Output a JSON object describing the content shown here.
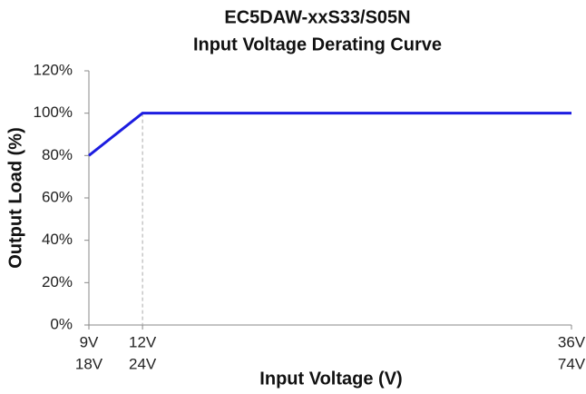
{
  "chart_data": {
    "type": "line",
    "title": [
      "EC5DAW-xxS33/S05N",
      "Input Voltage Derating Curve"
    ],
    "xlabel": "Input Voltage (V)",
    "ylabel": "Output Load (%)",
    "series": [
      {
        "name": "Output Load",
        "color": "#1c1ce0",
        "x": [
          9,
          12,
          36
        ],
        "values": [
          80,
          100,
          100
        ]
      }
    ],
    "xlim": [
      9,
      36
    ],
    "xticks": [
      {
        "value": 9,
        "label": "9V"
      },
      {
        "value": 12,
        "label": "12V"
      },
      {
        "value": 36,
        "label": "36V"
      }
    ],
    "x2ticks": [
      {
        "value": 9,
        "label": "18V"
      },
      {
        "value": 12,
        "label": "24V"
      },
      {
        "value": 36,
        "label": "74V"
      }
    ],
    "ylim": [
      0,
      120
    ],
    "yticks": [
      {
        "value": 0,
        "label": "0%"
      },
      {
        "value": 20,
        "label": "20%"
      },
      {
        "value": 40,
        "label": "40%"
      },
      {
        "value": 60,
        "label": "60%"
      },
      {
        "value": 80,
        "label": "80%"
      },
      {
        "value": 100,
        "label": "100%"
      },
      {
        "value": 120,
        "label": "120%"
      }
    ],
    "grid": false
  }
}
